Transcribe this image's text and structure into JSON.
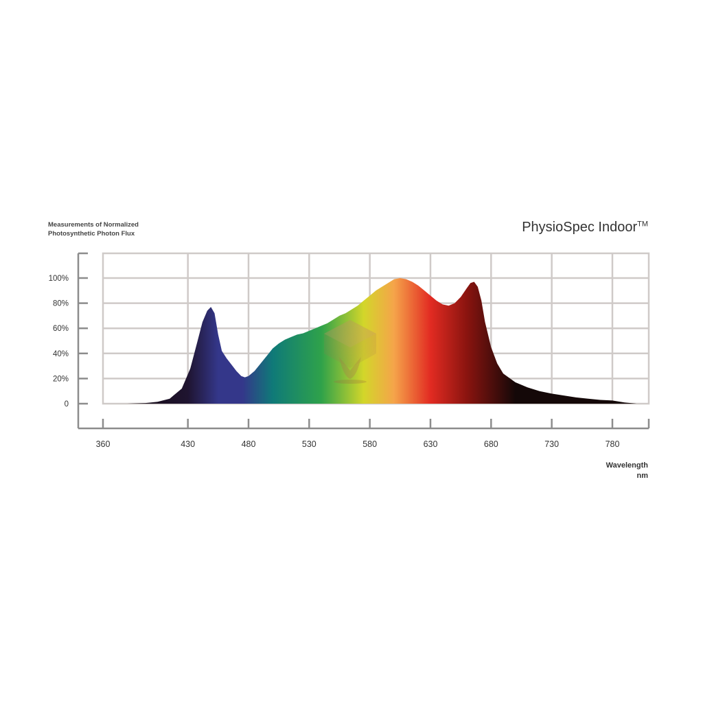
{
  "header": {
    "subtitle_line1": "Measurements of Normalized",
    "subtitle_line2": "Photosynthetic Photon Flux",
    "product_title": "PhysioSpec Indoor",
    "product_title_mark": "TM"
  },
  "chart_data": {
    "type": "area",
    "title": "PhysioSpec Indoor™",
    "subtitle": "Measurements of Normalized Photosynthetic Photon Flux",
    "xlabel": "Wavelength",
    "xunit": "nm",
    "ylabel": "",
    "xlim": [
      360,
      810
    ],
    "ylim": [
      0,
      110
    ],
    "x_ticks": [
      360,
      430,
      480,
      530,
      580,
      630,
      680,
      730,
      780
    ],
    "y_ticks": [
      0,
      20,
      40,
      60,
      80,
      100
    ],
    "y_tick_labels": [
      "0",
      "20%",
      "40%",
      "60%",
      "80%",
      "100%"
    ],
    "grid": true,
    "legend": "none",
    "series": [
      {
        "x": [
          380,
          395,
          405,
          415,
          425,
          432,
          438,
          442,
          446,
          449,
          452,
          455,
          458,
          462,
          466,
          470,
          474,
          477,
          480,
          485,
          490,
          495,
          500,
          505,
          510,
          515,
          520,
          525,
          530,
          535,
          540,
          545,
          550,
          555,
          560,
          565,
          570,
          575,
          580,
          585,
          590,
          595,
          600,
          605,
          610,
          615,
          620,
          625,
          630,
          635,
          640,
          645,
          650,
          655,
          660,
          663,
          666,
          669,
          672,
          675,
          680,
          685,
          690,
          700,
          710,
          720,
          730,
          740,
          750,
          760,
          770,
          780,
          790,
          800
        ],
        "y": [
          0,
          0.5,
          1.5,
          4,
          12,
          28,
          50,
          65,
          74,
          77,
          72,
          55,
          42,
          36,
          31,
          26,
          22,
          21,
          22,
          26,
          32,
          38,
          44,
          48,
          51,
          53,
          55,
          56,
          58,
          60,
          62,
          64,
          67,
          70,
          72,
          75,
          78,
          82,
          86,
          90,
          93,
          96,
          99,
          100,
          99,
          97,
          94,
          90,
          86,
          82,
          79,
          78,
          80,
          85,
          92,
          96,
          97,
          93,
          82,
          65,
          45,
          32,
          24,
          17,
          13,
          10,
          8,
          6.5,
          5,
          4,
          3,
          2.5,
          1,
          0
        ]
      }
    ],
    "colors": {
      "violet": "#1f1430",
      "blue": "#34378a",
      "teal": "#0f7a78",
      "green": "#2fa24a",
      "yellow": "#d3d62a",
      "orange": "#f5a44a",
      "red": "#e22b22",
      "dark_red": "#8a140f",
      "black": "#140808"
    }
  }
}
